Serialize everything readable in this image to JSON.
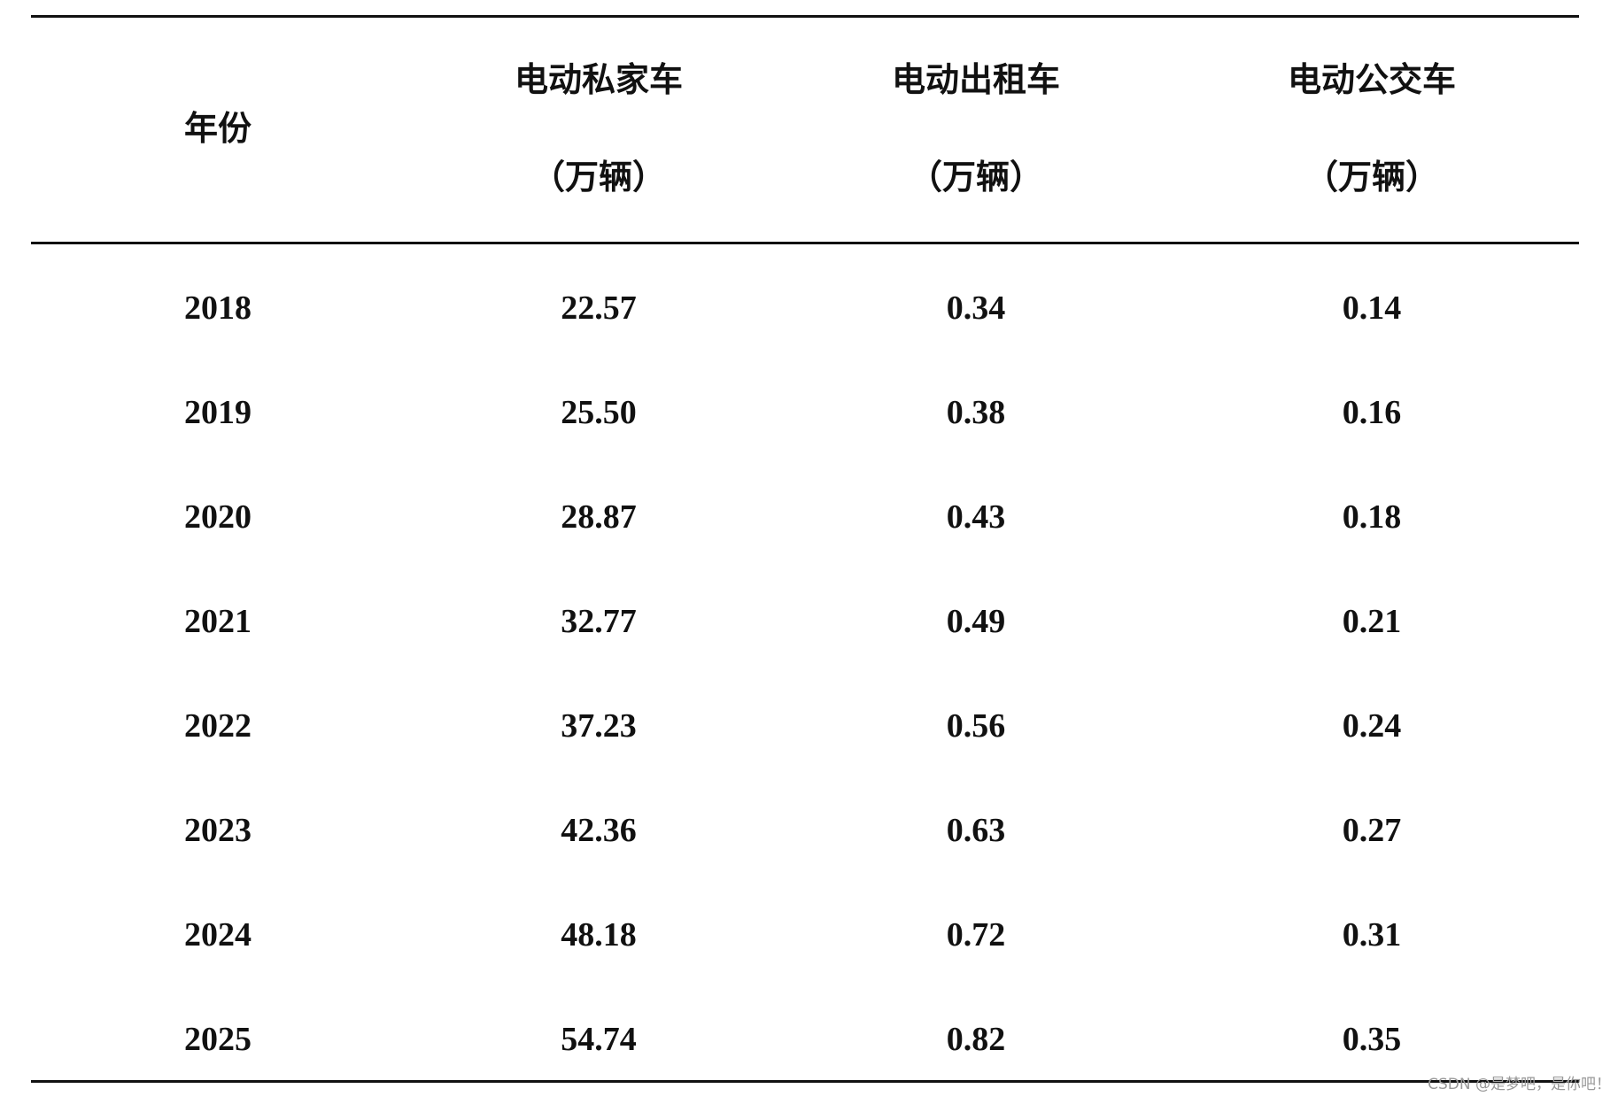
{
  "table": {
    "header": [
      {
        "name": "年份"
      },
      {
        "name": "电动私家车",
        "unit": "（万辆）"
      },
      {
        "name": "电动出租车",
        "unit": "（万辆）"
      },
      {
        "name": "电动公交车",
        "unit": "（万辆）"
      }
    ],
    "rows": [
      [
        "2018",
        "22.57",
        "0.34",
        "0.14"
      ],
      [
        "2019",
        "25.50",
        "0.38",
        "0.16"
      ],
      [
        "2020",
        "28.87",
        "0.43",
        "0.18"
      ],
      [
        "2021",
        "32.77",
        "0.49",
        "0.21"
      ],
      [
        "2022",
        "37.23",
        "0.56",
        "0.24"
      ],
      [
        "2023",
        "42.36",
        "0.63",
        "0.27"
      ],
      [
        "2024",
        "48.18",
        "0.72",
        "0.31"
      ],
      [
        "2025",
        "54.74",
        "0.82",
        "0.35"
      ]
    ]
  },
  "watermark": "CSDN @是梦吧，是你吧！"
}
